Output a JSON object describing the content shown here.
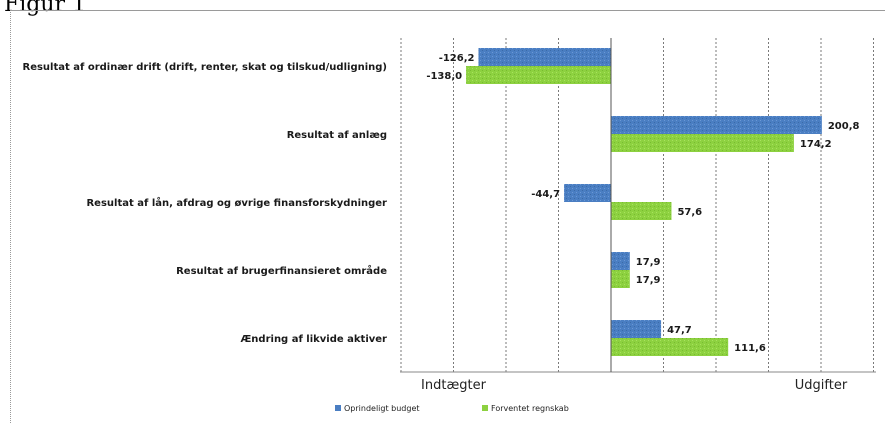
{
  "page": {
    "title": "Figur 1"
  },
  "chart_data": {
    "type": "bar",
    "orientation": "horizontal",
    "categories": [
      "Resultat af ordinær drift (drift, renter, skat og tilskud/udligning)",
      "Resultat af anlæg",
      "Resultat af lån, afdrag og øvrige finansforskydninger",
      "Resultat af brugerfinansieret område",
      "Ændring af likvide aktiver"
    ],
    "series": [
      {
        "name": "Oprindeligt budget",
        "color": "#4a7ec2",
        "values": [
          -126.2,
          200.8,
          -44.7,
          17.9,
          47.7
        ],
        "labels": [
          "-126,2",
          "200,8",
          "-44,7",
          "17,9",
          "47,7"
        ]
      },
      {
        "name": "Forventet regnskab",
        "color": "#8dd140",
        "values": [
          -138.0,
          174.2,
          57.6,
          17.9,
          111.6
        ],
        "labels": [
          "-138,0",
          "174,2",
          "57,6",
          "17,9",
          "111,6"
        ]
      }
    ],
    "xlim": [
      -200,
      250
    ],
    "grid": "vertical",
    "axis_left_label": "Indtægter",
    "axis_right_label": "Udgifter",
    "legend": "bottom"
  }
}
